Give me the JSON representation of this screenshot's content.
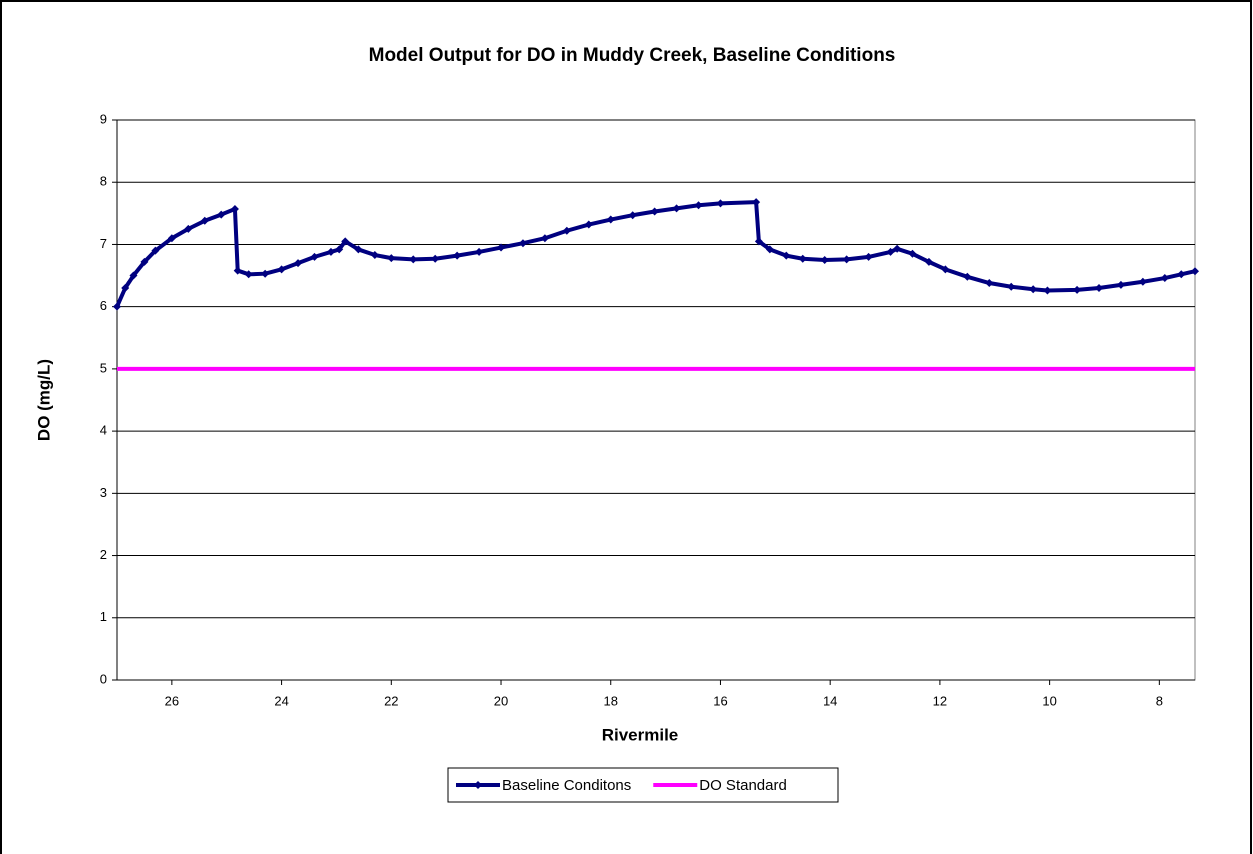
{
  "chart_data": {
    "type": "line",
    "title": "Model Output for DO in Muddy Creek, Baseline Conditions",
    "x_label": "Rivermile",
    "y_label": "DO (mg/L)",
    "xlim": [
      27.0,
      7.35
    ],
    "xticks": [
      26,
      24,
      22,
      20,
      18,
      16,
      14,
      12,
      10,
      8
    ],
    "ylim": [
      0,
      9
    ],
    "yticks": [
      0,
      1,
      2,
      3,
      4,
      5,
      6,
      7,
      8,
      9
    ],
    "grid": true,
    "legend": "bottom",
    "series": [
      {
        "name": "Baseline Conditons",
        "color": "#000080",
        "markers": true,
        "x": [
          27.0,
          26.85,
          26.7,
          26.5,
          26.3,
          26.0,
          25.7,
          25.4,
          25.1,
          24.85,
          24.8,
          24.6,
          24.3,
          24.0,
          23.7,
          23.4,
          23.1,
          22.95,
          22.84,
          22.6,
          22.3,
          22.0,
          21.6,
          21.2,
          20.8,
          20.4,
          20.0,
          19.6,
          19.2,
          18.8,
          18.4,
          18.0,
          17.6,
          17.2,
          16.8,
          16.4,
          16.0,
          15.35,
          15.3,
          15.1,
          14.8,
          14.5,
          14.1,
          13.7,
          13.3,
          12.9,
          12.78,
          12.5,
          12.2,
          11.9,
          11.5,
          11.1,
          10.7,
          10.3,
          10.04,
          9.5,
          9.1,
          8.7,
          8.3,
          7.9,
          7.6,
          7.35
        ],
        "values": [
          6.0,
          6.3,
          6.5,
          6.72,
          6.9,
          7.1,
          7.25,
          7.38,
          7.48,
          7.57,
          6.58,
          6.52,
          6.53,
          6.6,
          6.7,
          6.8,
          6.88,
          6.92,
          7.05,
          6.92,
          6.83,
          6.78,
          6.76,
          6.77,
          6.82,
          6.88,
          6.95,
          7.02,
          7.1,
          7.22,
          7.32,
          7.4,
          7.47,
          7.53,
          7.58,
          7.63,
          7.66,
          7.68,
          7.05,
          6.92,
          6.82,
          6.77,
          6.75,
          6.76,
          6.8,
          6.88,
          6.93,
          6.85,
          6.72,
          6.6,
          6.48,
          6.38,
          6.32,
          6.28,
          6.26,
          6.27,
          6.3,
          6.35,
          6.4,
          6.46,
          6.52,
          6.57
        ]
      },
      {
        "name": "DO Standard",
        "color": "#ff00ff",
        "markers": false,
        "x": [
          27.0,
          7.35
        ],
        "values": [
          5,
          5
        ]
      }
    ]
  }
}
